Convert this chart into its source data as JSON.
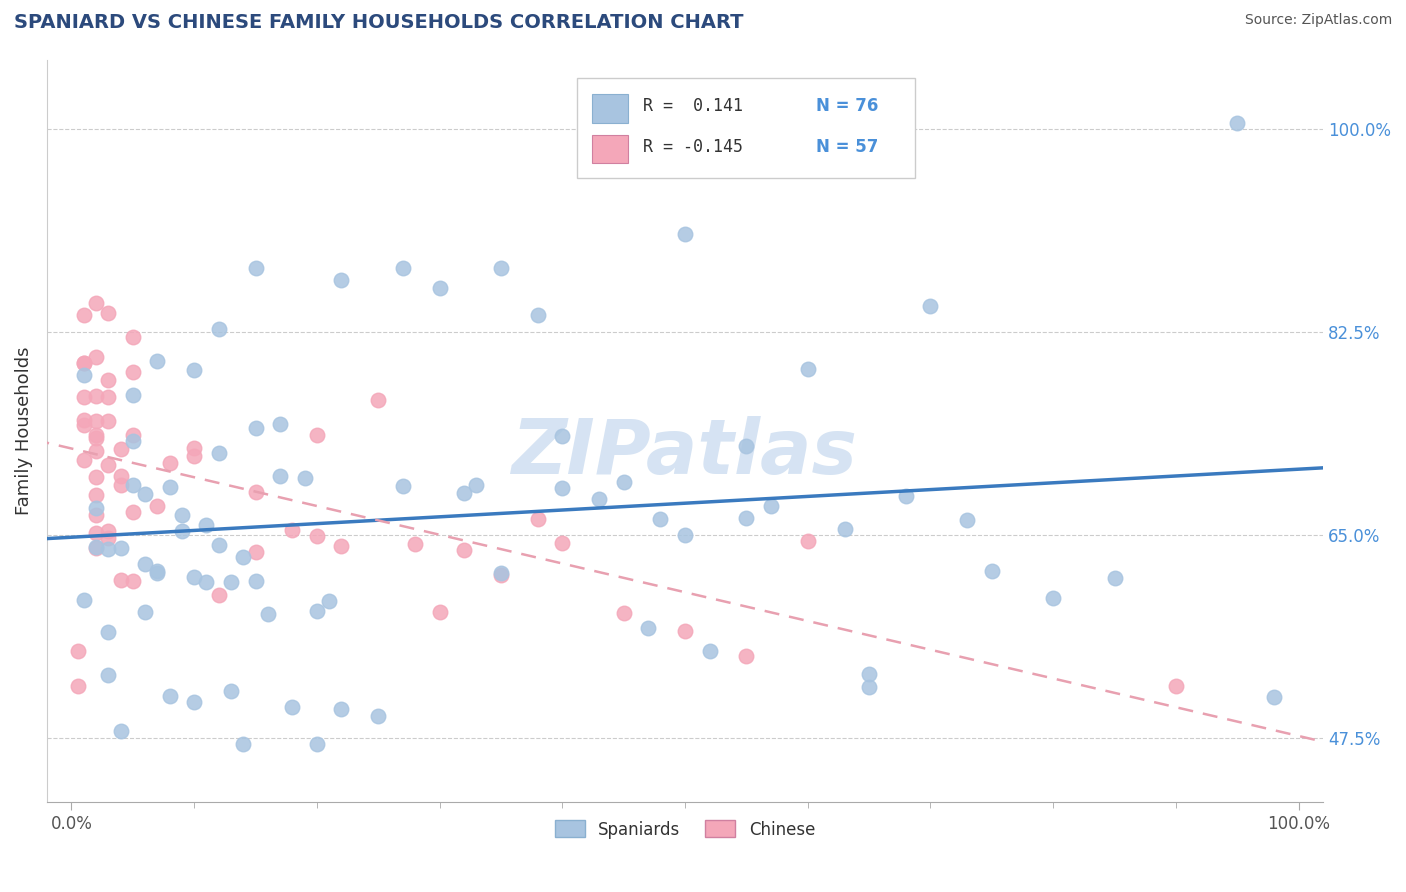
{
  "title": "SPANIARD VS CHINESE FAMILY HOUSEHOLDS CORRELATION CHART",
  "source": "Source: ZipAtlas.com",
  "ylabel": "Family Households",
  "ytick_vals": [
    47.5,
    65.0,
    82.5,
    100.0
  ],
  "ytick_labels": [
    "47.5%",
    "65.0%",
    "82.5%",
    "100.0%"
  ],
  "xtick_vals": [
    0,
    100
  ],
  "xtick_labels": [
    "0.0%",
    "100.0%"
  ],
  "legend_r1": "R =  0.141",
  "legend_n1": "N = 76",
  "legend_r2": "R = -0.145",
  "legend_n2": "N = 57",
  "legend_label1": "Spaniards",
  "legend_label2": "Chinese",
  "spaniards_color": "#a8c4e0",
  "chinese_color": "#f4a7b9",
  "trendline_spaniards_color": "#3a7abf",
  "trendline_chinese_color": "#e8a0b0",
  "watermark": "ZIPatlas",
  "title_color": "#2c4a7c",
  "source_color": "#555555",
  "ylabel_color": "#333333",
  "ytick_color": "#4a90d9",
  "xtick_color": "#555555",
  "grid_color": "#cccccc",
  "legend_text_color": "#333333",
  "legend_n_color": "#4a90d9",
  "watermark_color": "#c5d8ee",
  "background": "#ffffff"
}
